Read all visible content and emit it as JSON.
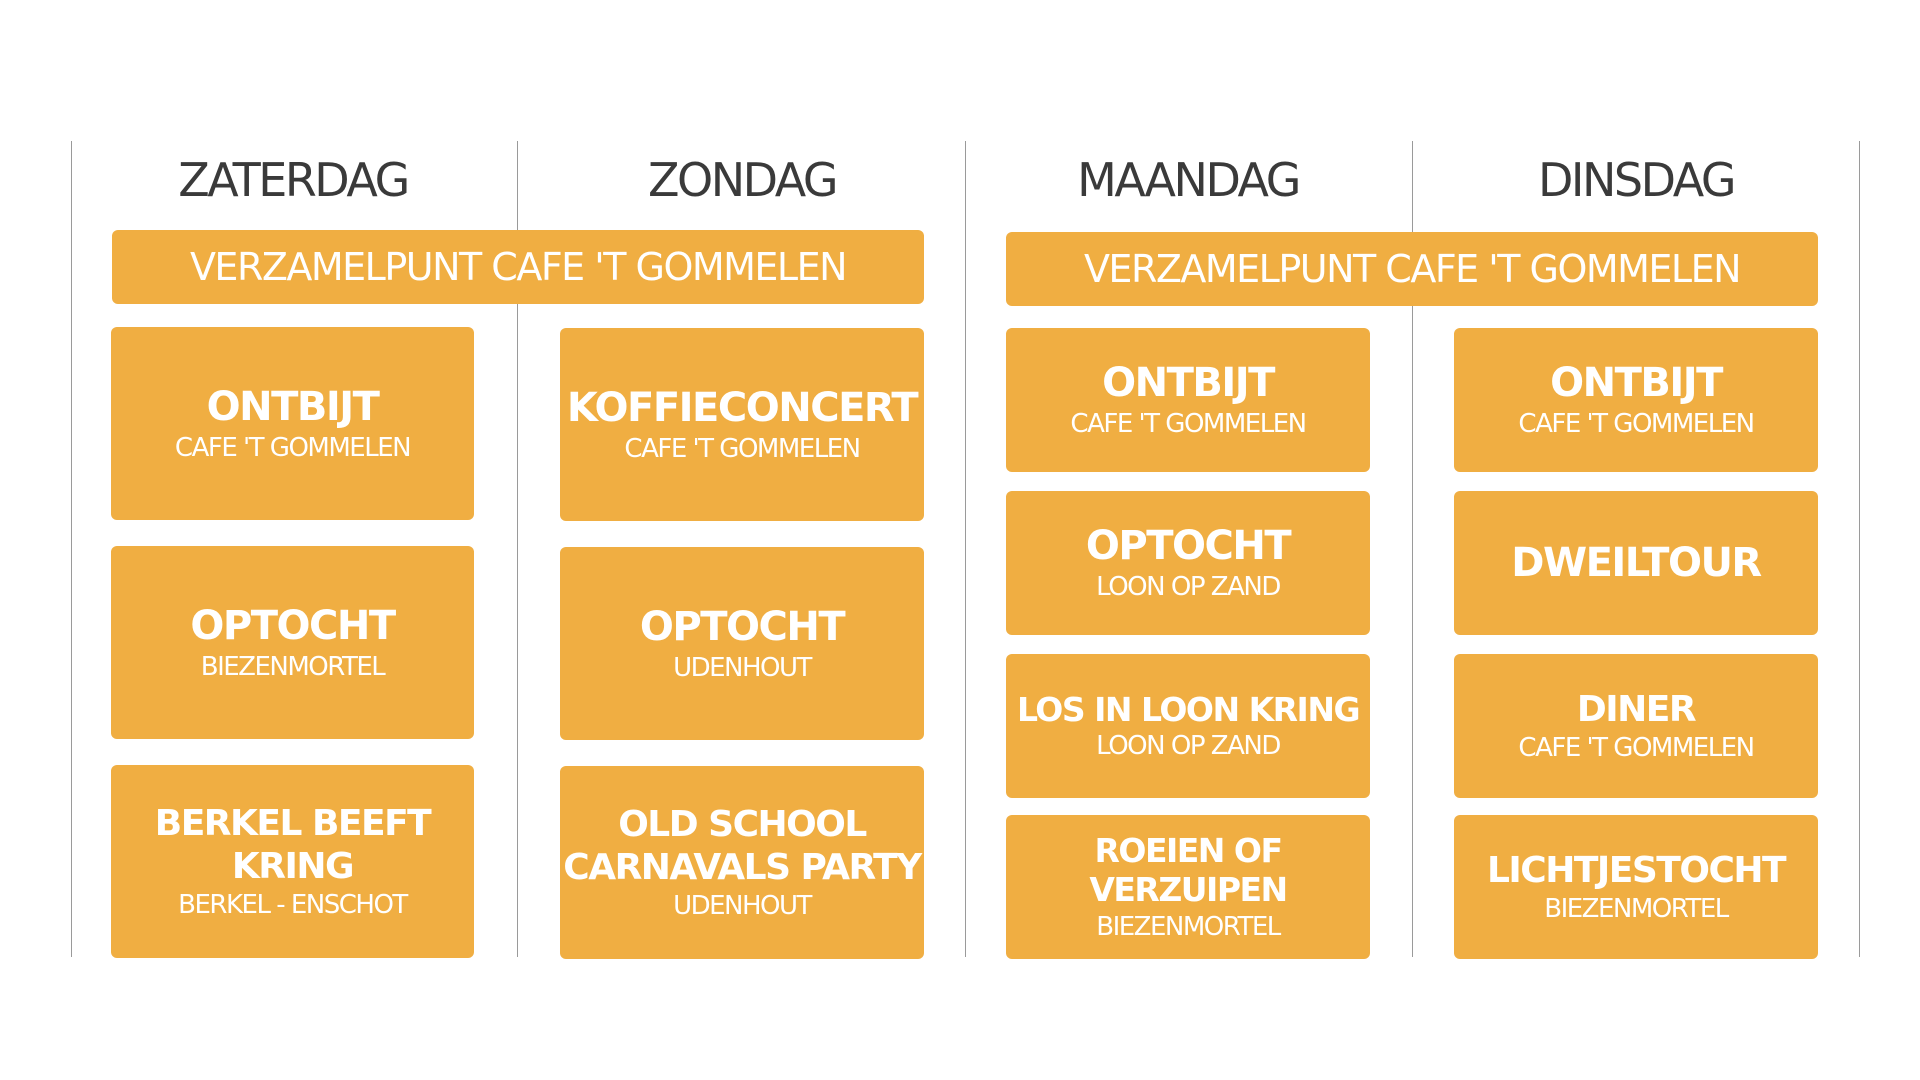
{
  "days": [
    "ZATERDAG",
    "ZONDAG",
    "MAANDAG",
    "DINSDAG"
  ],
  "banners": [
    "VERZAMELPUNT CAFE 'T GOMMELEN",
    "VERZAMELPUNT CAFE 'T GOMMELEN"
  ],
  "columns": [
    {
      "events": [
        {
          "title": "ONTBIJT",
          "location": "CAFE 'T GOMMELEN"
        },
        {
          "title": "OPTOCHT",
          "location": "BIEZENMORTEL"
        },
        {
          "title_lines": [
            "BERKEL BEEFT",
            "KRING"
          ],
          "location": "BERKEL - ENSCHOT"
        }
      ]
    },
    {
      "events": [
        {
          "title": "KOFFIECONCERT",
          "location": "CAFE 'T GOMMELEN"
        },
        {
          "title": "OPTOCHT",
          "location": "UDENHOUT"
        },
        {
          "title_lines": [
            "OLD SCHOOL",
            "CARNAVALS PARTY"
          ],
          "location": "UDENHOUT"
        }
      ]
    },
    {
      "events": [
        {
          "title": "ONTBIJT",
          "location": "CAFE 'T GOMMELEN"
        },
        {
          "title": "OPTOCHT",
          "location": "LOON OP ZAND"
        },
        {
          "title": "LOS IN LOON KRING",
          "location": "LOON OP ZAND"
        },
        {
          "title": "ROEIEN OF VERZUIPEN",
          "location": "BIEZENMORTEL"
        }
      ]
    },
    {
      "events": [
        {
          "title": "ONTBIJT",
          "location": "CAFE 'T GOMMELEN"
        },
        {
          "title": "DWEILTOUR"
        },
        {
          "title": "DINER",
          "location": "CAFE 'T GOMMELEN"
        },
        {
          "title": "LICHTJESTOCHT",
          "location": "BIEZENMORTEL"
        }
      ]
    }
  ],
  "colors": {
    "card": "#f0ae42",
    "card_text": "#ffffff",
    "header_text": "#3a3a3a",
    "divider": "#9a9a9a"
  }
}
